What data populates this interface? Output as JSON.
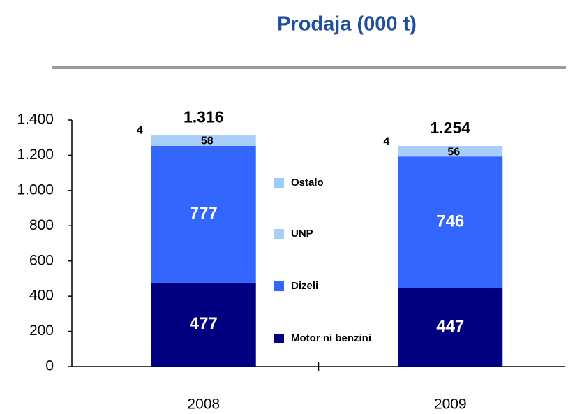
{
  "chart_data": {
    "type": "stacked_bar",
    "title": "Prodaja (000 t)",
    "categories": [
      "2008",
      "2009"
    ],
    "series": [
      {
        "name": "Motor ni benzini",
        "color": "#000080",
        "values": [
          477,
          447
        ]
      },
      {
        "name": "Dizeli",
        "color": "#3366ff",
        "values": [
          777,
          746
        ]
      },
      {
        "name": "UNP",
        "color": "#a8cdf7",
        "values": [
          58,
          56
        ]
      },
      {
        "name": "Ostalo",
        "color": "#99ccff",
        "values": [
          4,
          4
        ]
      }
    ],
    "totals": {
      "values": [
        1316,
        1254
      ],
      "value_labels": [
        "1.316",
        "1.254"
      ]
    },
    "ylim": [
      0,
      1400
    ],
    "yticks": [
      0,
      200,
      400,
      600,
      800,
      {
        "value": 1000,
        "label": "1.000"
      },
      {
        "value": 1200,
        "label": "1.200"
      },
      {
        "value": 1400,
        "label": "1.400"
      }
    ]
  }
}
